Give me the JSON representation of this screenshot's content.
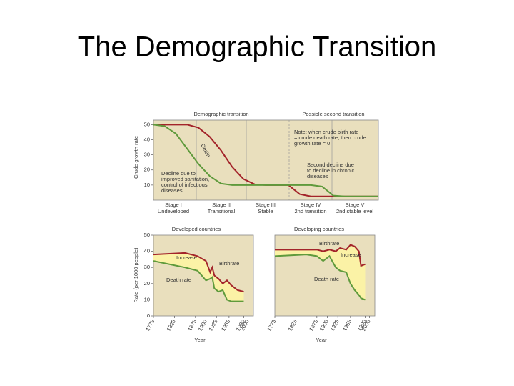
{
  "title": "The Demographic Transition",
  "chart_data": [
    {
      "type": "line",
      "title": "Demographic transition",
      "subtitle": "Possible second transition",
      "y_label": "Crude growth rate",
      "x": [
        0,
        5,
        10,
        15,
        20,
        25,
        30,
        35,
        40,
        45,
        50,
        55,
        60,
        65,
        70,
        75,
        80,
        85,
        90,
        95,
        100
      ],
      "xlim": [
        0,
        100
      ],
      "ylim": [
        0,
        53
      ],
      "yticks": [
        10,
        20,
        30,
        40,
        50
      ],
      "series": [
        {
          "color": "#a3242a",
          "values": [
            50,
            50,
            50,
            50,
            48,
            42,
            33,
            22,
            14,
            10.5,
            10,
            10,
            10,
            4,
            2.5,
            2.5,
            2.5,
            2.5,
            2.5,
            2.5,
            2.5
          ]
        },
        {
          "color": "#5f9a3c",
          "values": [
            50,
            49,
            44,
            34,
            24,
            16,
            11,
            10,
            10,
            10,
            10,
            10,
            10,
            10,
            10,
            9,
            3,
            2.5,
            2.5,
            2.5,
            2.5
          ]
        }
      ],
      "stages": [
        [
          "Stage I",
          "Undeveloped"
        ],
        [
          "Stage II",
          "Transitional"
        ],
        [
          "Stage III",
          "Stable"
        ],
        [
          "Stage IV",
          "2nd transition"
        ],
        [
          "Stage V",
          "2nd stable level"
        ]
      ],
      "annotations": [
        [
          "Death"
        ],
        [
          "Decline due to",
          "improved sanitation,",
          "control of infectious",
          "diseases"
        ],
        [
          "Note: when crude birth rate",
          "= crude death rate, then crude",
          "growth rate = 0"
        ],
        [
          "Second decline due",
          "to decline in chronic",
          "diseases"
        ]
      ]
    },
    {
      "type": "line",
      "title": "Developed countries",
      "x_label": "Year",
      "y_label": "Rate (per 1000 people)",
      "x": [
        1775,
        1850,
        1880,
        1900,
        1910,
        1915,
        1920,
        1930,
        1940,
        1950,
        1960,
        1975,
        1990
      ],
      "xlim": [
        1775,
        2013
      ],
      "ylim": [
        0,
        50
      ],
      "yticks": [
        0,
        10,
        20,
        30,
        40,
        50
      ],
      "xticks": [
        1775,
        1825,
        1875,
        1900,
        1925,
        1955,
        1990,
        2000
      ],
      "series": [
        {
          "color": "#a3242a",
          "values": [
            38,
            39,
            37,
            34,
            27,
            30,
            25,
            23,
            20,
            22,
            19,
            16,
            15
          ]
        },
        {
          "color": "#5f9a3c",
          "values": [
            34,
            30,
            28,
            22,
            23,
            24,
            17,
            15,
            16,
            10,
            9,
            9,
            9
          ]
        }
      ],
      "annotations": [
        [
          "Increase"
        ],
        [
          "Birthrate"
        ],
        [
          "Death rate"
        ]
      ]
    },
    {
      "type": "line",
      "title": "Developing countries",
      "x_label": "Year",
      "x": [
        1775,
        1850,
        1875,
        1890,
        1905,
        1920,
        1930,
        1945,
        1955,
        1965,
        1975,
        1980,
        1990
      ],
      "xlim": [
        1775,
        2013
      ],
      "ylim": [
        0,
        50
      ],
      "xticks": [
        1775,
        1825,
        1875,
        1900,
        1925,
        1955,
        1990,
        2000
      ],
      "series": [
        {
          "color": "#a3242a",
          "values": [
            41,
            41,
            41,
            40,
            41,
            40,
            42,
            41,
            44,
            43,
            40,
            31,
            32
          ]
        },
        {
          "color": "#5f9a3c",
          "values": [
            37,
            38,
            37,
            34,
            37,
            30,
            28,
            27,
            20,
            16,
            13,
            11,
            10
          ]
        }
      ],
      "annotations": [
        [
          "Birthrate"
        ],
        [
          "Increase"
        ],
        [
          "Death rate"
        ]
      ]
    }
  ]
}
